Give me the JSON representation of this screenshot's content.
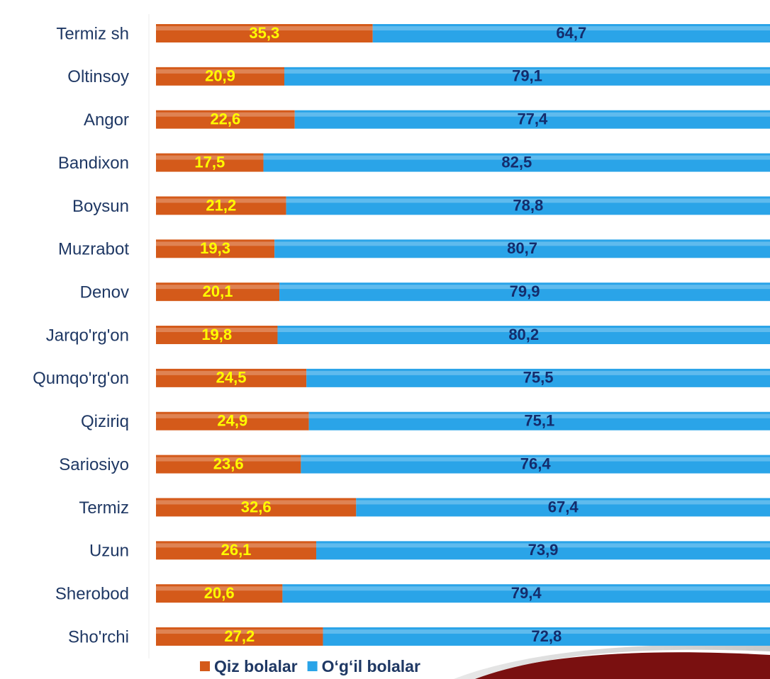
{
  "chart_data": {
    "type": "stacked_barh",
    "categories": [
      "Termiz sh",
      "Oltinsoy",
      "Angor",
      "Bandixon",
      "Boysun",
      "Muzrabot",
      "Denov",
      "Jarqo'rg'on",
      "Qumqo'rg'on",
      "Qiziriq",
      "Sariosiyo",
      "Termiz",
      "Uzun",
      "Sherobod",
      "Sho'rchi"
    ],
    "series": [
      {
        "name": "Qiz bolalar",
        "color": "#d45a1a",
        "label_color": "#ffff00",
        "values": [
          35.3,
          20.9,
          22.6,
          17.5,
          21.2,
          19.3,
          20.1,
          19.8,
          24.5,
          24.9,
          23.6,
          32.6,
          26.1,
          20.6,
          27.2
        ],
        "value_labels": [
          "35,3",
          "20,9",
          "22,6",
          "17,5",
          "21,2",
          "19,3",
          "20,1",
          "19,8",
          "24,5",
          "24,9",
          "23,6",
          "32,6",
          "26,1",
          "20,6",
          "27,2"
        ]
      },
      {
        "name": "O‘g‘il bolalar",
        "color": "#2aa4e8",
        "label_color": "#142c6c",
        "values": [
          64.7,
          79.1,
          77.4,
          82.5,
          78.8,
          80.7,
          79.9,
          80.2,
          75.5,
          75.1,
          76.4,
          67.4,
          73.9,
          79.4,
          72.8
        ],
        "value_labels": [
          "64,7",
          "79,1",
          "77,4",
          "82,5",
          "78,8",
          "80,7",
          "79,9",
          "80,2",
          "75,5",
          "75,1",
          "76,4",
          "67,4",
          "73,9",
          "79,4",
          "72,8"
        ]
      }
    ],
    "xlim": [
      0,
      100
    ],
    "legend": "bottom"
  }
}
